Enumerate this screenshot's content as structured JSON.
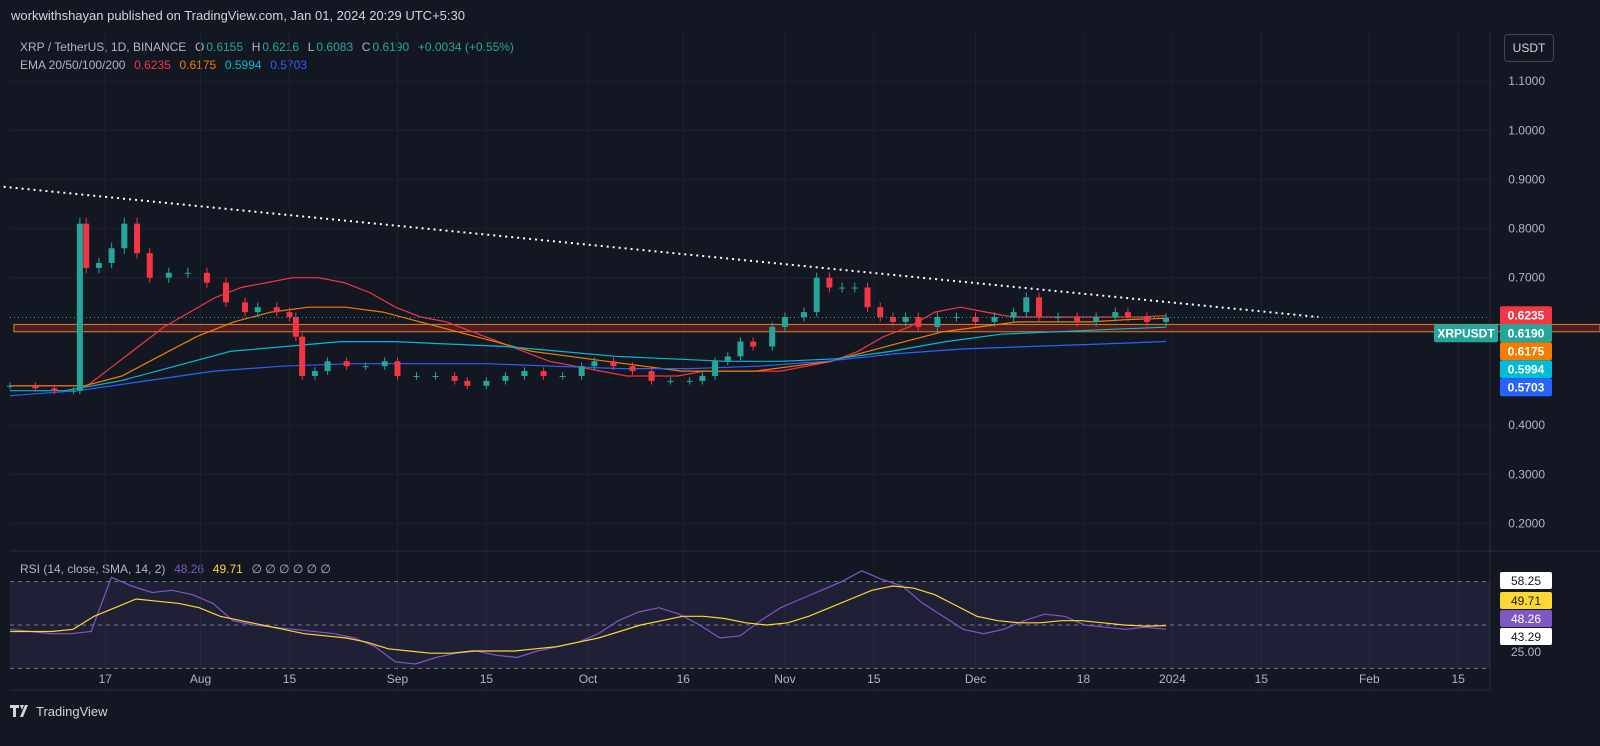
{
  "header": {
    "published": "workwithshayan published on TradingView.com, Jan 01, 2024 20:29 UTC+5:30"
  },
  "legend": {
    "symbol": "XRP / TetherUS, 1D, BINANCE",
    "o_label": "O",
    "o": "0.6155",
    "h_label": "H",
    "h": "0.6216",
    "l_label": "L",
    "l": "0.6083",
    "c_label": "C",
    "c": "0.6190",
    "change": "+0.0034 (+0.55%)",
    "ema_label": "EMA 20/50/100/200",
    "ema20": "0.6235",
    "ema50": "0.6175",
    "ema100": "0.5994",
    "ema200": "0.5703"
  },
  "rsi_legend": {
    "label": "RSI (14, close, SMA, 14, 2)",
    "rsi": "48.26",
    "sma": "49.71",
    "extra": "∅ ∅ ∅ ∅ ∅ ∅"
  },
  "currency_button": "USDT",
  "footer": {
    "brand": "TradingView"
  },
  "colors": {
    "background": "#131722",
    "up": "#26a69a",
    "down": "#f23645",
    "ema20": "#f23645",
    "ema50": "#f57c00",
    "ema100": "#00bcd4",
    "ema200": "#2962ff",
    "rsi": "#7e57c2",
    "rsi_sma": "#fdd835"
  },
  "chart_data": [
    {
      "type": "candlestick",
      "symbol": "XRPUSDT",
      "y_axis_ticks": [
        "1.1000",
        "1.0000",
        "0.9000",
        "0.8000",
        "0.7000",
        "0.4000",
        "0.3000",
        "0.2000"
      ],
      "ylim": [
        0.15,
        1.2
      ],
      "x_axis_ticks": [
        {
          "label": "17",
          "date": "2023-07-17"
        },
        {
          "label": "Aug",
          "date": "2023-08-01"
        },
        {
          "label": "15",
          "date": "2023-08-15"
        },
        {
          "label": "Sep",
          "date": "2023-09-01"
        },
        {
          "label": "15",
          "date": "2023-09-15"
        },
        {
          "label": "Oct",
          "date": "2023-10-01"
        },
        {
          "label": "16",
          "date": "2023-10-16"
        },
        {
          "label": "Nov",
          "date": "2023-11-01"
        },
        {
          "label": "15",
          "date": "2023-11-15"
        },
        {
          "label": "Dec",
          "date": "2023-12-01"
        },
        {
          "label": "18",
          "date": "2023-12-18"
        },
        {
          "label": "2024",
          "date": "2024-01-01"
        },
        {
          "label": "15",
          "date": "2024-01-15"
        },
        {
          "label": "Feb",
          "date": "2024-02-01"
        },
        {
          "label": "15",
          "date": "2024-02-15"
        }
      ],
      "xlim": [
        "2023-07-02",
        "2024-02-20"
      ],
      "closes": [
        {
          "date": "2023-07-02",
          "c": 0.48
        },
        {
          "date": "2023-07-06",
          "c": 0.475
        },
        {
          "date": "2023-07-09",
          "c": 0.47
        },
        {
          "date": "2023-07-12",
          "c": 0.47
        },
        {
          "date": "2023-07-13",
          "c": 0.81
        },
        {
          "date": "2023-07-14",
          "c": 0.72
        },
        {
          "date": "2023-07-16",
          "c": 0.73
        },
        {
          "date": "2023-07-18",
          "c": 0.76
        },
        {
          "date": "2023-07-20",
          "c": 0.81
        },
        {
          "date": "2023-07-22",
          "c": 0.75
        },
        {
          "date": "2023-07-24",
          "c": 0.7
        },
        {
          "date": "2023-07-27",
          "c": 0.71
        },
        {
          "date": "2023-07-30",
          "c": 0.71
        },
        {
          "date": "2023-08-02",
          "c": 0.69
        },
        {
          "date": "2023-08-05",
          "c": 0.65
        },
        {
          "date": "2023-08-08",
          "c": 0.63
        },
        {
          "date": "2023-08-10",
          "c": 0.64
        },
        {
          "date": "2023-08-13",
          "c": 0.63
        },
        {
          "date": "2023-08-15",
          "c": 0.62
        },
        {
          "date": "2023-08-16",
          "c": 0.58
        },
        {
          "date": "2023-08-17",
          "c": 0.5
        },
        {
          "date": "2023-08-19",
          "c": 0.51
        },
        {
          "date": "2023-08-21",
          "c": 0.53
        },
        {
          "date": "2023-08-24",
          "c": 0.52
        },
        {
          "date": "2023-08-27",
          "c": 0.52
        },
        {
          "date": "2023-08-30",
          "c": 0.53
        },
        {
          "date": "2023-09-01",
          "c": 0.5
        },
        {
          "date": "2023-09-04",
          "c": 0.5
        },
        {
          "date": "2023-09-07",
          "c": 0.5
        },
        {
          "date": "2023-09-10",
          "c": 0.49
        },
        {
          "date": "2023-09-12",
          "c": 0.48
        },
        {
          "date": "2023-09-15",
          "c": 0.49
        },
        {
          "date": "2023-09-18",
          "c": 0.5
        },
        {
          "date": "2023-09-21",
          "c": 0.51
        },
        {
          "date": "2023-09-24",
          "c": 0.5
        },
        {
          "date": "2023-09-27",
          "c": 0.5
        },
        {
          "date": "2023-09-30",
          "c": 0.52
        },
        {
          "date": "2023-10-02",
          "c": 0.53
        },
        {
          "date": "2023-10-05",
          "c": 0.52
        },
        {
          "date": "2023-10-08",
          "c": 0.51
        },
        {
          "date": "2023-10-11",
          "c": 0.49
        },
        {
          "date": "2023-10-14",
          "c": 0.49
        },
        {
          "date": "2023-10-17",
          "c": 0.49
        },
        {
          "date": "2023-10-19",
          "c": 0.5
        },
        {
          "date": "2023-10-21",
          "c": 0.53
        },
        {
          "date": "2023-10-23",
          "c": 0.54
        },
        {
          "date": "2023-10-25",
          "c": 0.57
        },
        {
          "date": "2023-10-27",
          "c": 0.56
        },
        {
          "date": "2023-10-30",
          "c": 0.6
        },
        {
          "date": "2023-11-01",
          "c": 0.62
        },
        {
          "date": "2023-11-04",
          "c": 0.63
        },
        {
          "date": "2023-11-06",
          "c": 0.7
        },
        {
          "date": "2023-11-08",
          "c": 0.68
        },
        {
          "date": "2023-11-10",
          "c": 0.68
        },
        {
          "date": "2023-11-12",
          "c": 0.68
        },
        {
          "date": "2023-11-14",
          "c": 0.64
        },
        {
          "date": "2023-11-16",
          "c": 0.62
        },
        {
          "date": "2023-11-18",
          "c": 0.61
        },
        {
          "date": "2023-11-20",
          "c": 0.62
        },
        {
          "date": "2023-11-22",
          "c": 0.6
        },
        {
          "date": "2023-11-25",
          "c": 0.62
        },
        {
          "date": "2023-11-28",
          "c": 0.62
        },
        {
          "date": "2023-12-01",
          "c": 0.61
        },
        {
          "date": "2023-12-04",
          "c": 0.62
        },
        {
          "date": "2023-12-07",
          "c": 0.63
        },
        {
          "date": "2023-12-09",
          "c": 0.66
        },
        {
          "date": "2023-12-11",
          "c": 0.62
        },
        {
          "date": "2023-12-14",
          "c": 0.62
        },
        {
          "date": "2023-12-17",
          "c": 0.61
        },
        {
          "date": "2023-12-20",
          "c": 0.62
        },
        {
          "date": "2023-12-23",
          "c": 0.63
        },
        {
          "date": "2023-12-25",
          "c": 0.62
        },
        {
          "date": "2023-12-28",
          "c": 0.61
        },
        {
          "date": "2023-12-31",
          "c": 0.619
        }
      ],
      "ema": [
        {
          "name": "EMA 20",
          "last": 0.6235,
          "values": [
            0.48,
            0.48,
            0.48,
            0.48,
            0.52,
            0.56,
            0.6,
            0.63,
            0.66,
            0.68,
            0.69,
            0.7,
            0.7,
            0.69,
            0.67,
            0.64,
            0.62,
            0.61,
            0.59,
            0.57,
            0.55,
            0.53,
            0.52,
            0.51,
            0.5,
            0.5,
            0.5,
            0.51,
            0.51,
            0.51,
            0.51,
            0.52,
            0.53,
            0.55,
            0.58,
            0.6,
            0.63,
            0.64,
            0.63,
            0.62,
            0.62,
            0.62,
            0.62,
            0.62,
            0.62,
            0.623
          ]
        },
        {
          "name": "EMA 50",
          "last": 0.6175,
          "values": [
            0.48,
            0.48,
            0.48,
            0.5,
            0.54,
            0.58,
            0.61,
            0.63,
            0.64,
            0.64,
            0.63,
            0.61,
            0.59,
            0.57,
            0.55,
            0.54,
            0.53,
            0.52,
            0.51,
            0.51,
            0.51,
            0.52,
            0.53,
            0.55,
            0.57,
            0.59,
            0.6,
            0.61,
            0.61,
            0.61,
            0.615,
            0.6175
          ]
        },
        {
          "name": "EMA 100",
          "last": 0.5994,
          "values": [
            0.47,
            0.47,
            0.49,
            0.52,
            0.55,
            0.56,
            0.57,
            0.57,
            0.565,
            0.56,
            0.55,
            0.54,
            0.535,
            0.53,
            0.53,
            0.535,
            0.55,
            0.57,
            0.585,
            0.59,
            0.595,
            0.5994
          ]
        },
        {
          "name": "EMA 200",
          "last": 0.5703,
          "values": [
            0.46,
            0.47,
            0.49,
            0.51,
            0.52,
            0.525,
            0.525,
            0.525,
            0.52,
            0.515,
            0.515,
            0.52,
            0.53,
            0.545,
            0.555,
            0.56,
            0.565,
            0.5703
          ]
        }
      ],
      "trendline": {
        "start": {
          "date": "2023-07-01",
          "price": 0.885
        },
        "end": {
          "date": "2024-01-24",
          "price": 0.62
        }
      },
      "support_zone": [
        0.59,
        0.605
      ],
      "price_labels": [
        {
          "text": "0.6235",
          "value": 0.6235,
          "color": "#f23645"
        },
        {
          "text": "0.6190",
          "value": 0.619,
          "color": "#26a69a",
          "prefix": "XRPUSDT"
        },
        {
          "text": "0.6175",
          "value": 0.6175,
          "color": "#f57c00"
        },
        {
          "text": "0.5994",
          "value": 0.5994,
          "color": "#00bcd4"
        },
        {
          "text": "0.5703",
          "value": 0.5703,
          "color": "#2962ff"
        }
      ]
    },
    {
      "type": "line",
      "name": "RSI",
      "y_axis_ticks": [
        "58.25",
        "49.71",
        "48.26",
        "43.29",
        "25.00"
      ],
      "ylim": [
        20,
        80
      ],
      "bands": {
        "upper": 70,
        "middle": 50,
        "lower": 30
      },
      "rsi": [
        48,
        47,
        46,
        46,
        47,
        72,
        68,
        65,
        66,
        64,
        60,
        52,
        50,
        49,
        48,
        47,
        46,
        44,
        40,
        33,
        32,
        35,
        37,
        38,
        36,
        35,
        38,
        40,
        42,
        46,
        52,
        56,
        58,
        55,
        50,
        44,
        45,
        52,
        58,
        62,
        66,
        70,
        75,
        71,
        68,
        60,
        54,
        48,
        46,
        48,
        52,
        55,
        54,
        50,
        49,
        48,
        49,
        48
      ],
      "rsi_sma": [
        47,
        47,
        47,
        48,
        54,
        58,
        62,
        61,
        60,
        58,
        54,
        52,
        50,
        48,
        46,
        45,
        44,
        42,
        39,
        38,
        37,
        37,
        38,
        38,
        38,
        39,
        40,
        42,
        44,
        47,
        50,
        52,
        54,
        54,
        53,
        51,
        50,
        51,
        54,
        58,
        62,
        66,
        68,
        67,
        64,
        59,
        54,
        52,
        51,
        51,
        52,
        52,
        51,
        50,
        49.5,
        49.71
      ]
    }
  ]
}
